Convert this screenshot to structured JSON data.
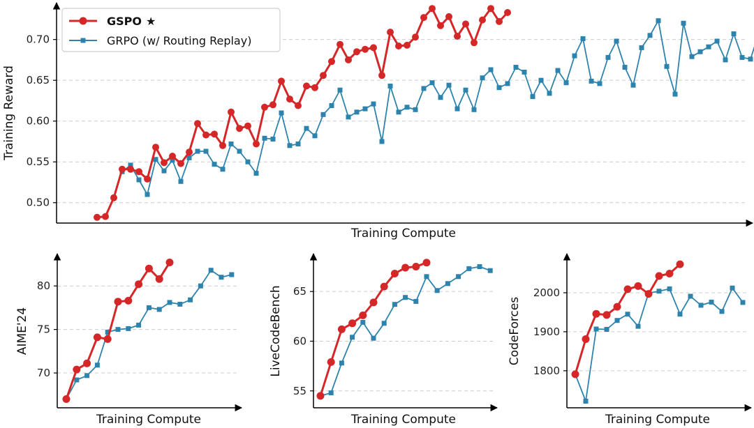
{
  "colors": {
    "gspo": "#d62728",
    "grpo": "#2e83ad",
    "grid": "#cccccc",
    "axis": "#000000"
  },
  "legend": {
    "gspo_label": "GSPO",
    "gspo_star": "★",
    "grpo_label": "GRPO (w/ Routing Replay)"
  },
  "chart_data": [
    {
      "type": "line",
      "xlabel": "Training Compute",
      "ylabel": "Training Reward",
      "ylim": [
        0.475,
        0.745
      ],
      "yticks": [
        0.5,
        0.55,
        0.6,
        0.65,
        0.7
      ],
      "ytick_labels": [
        "0.50",
        "0.55",
        "0.60",
        "0.65",
        "0.70"
      ],
      "grid": true,
      "legend_position": "top-left",
      "series": [
        {
          "name": "GSPO ★",
          "key": "gspo",
          "x_start": 1,
          "values": [
            0.482,
            0.483,
            0.506,
            0.541,
            0.541,
            0.538,
            0.529,
            0.568,
            0.549,
            0.557,
            0.548,
            0.562,
            0.597,
            0.583,
            0.584,
            0.57,
            0.611,
            0.591,
            0.594,
            0.572,
            0.617,
            0.62,
            0.649,
            0.627,
            0.619,
            0.643,
            0.641,
            0.656,
            0.673,
            0.694,
            0.675,
            0.685,
            0.688,
            0.69,
            0.656,
            0.709,
            0.692,
            0.693,
            0.703,
            0.727,
            0.738,
            0.717,
            0.728,
            0.704,
            0.719,
            0.696,
            0.724,
            0.738,
            0.722,
            0.733
          ]
        },
        {
          "name": "GRPO (w/ Routing Replay)",
          "key": "grpo",
          "x_start": 4,
          "values": [
            0.538,
            0.546,
            0.528,
            0.51,
            0.553,
            0.539,
            0.552,
            0.526,
            0.555,
            0.563,
            0.563,
            0.547,
            0.541,
            0.572,
            0.563,
            0.55,
            0.536,
            0.579,
            0.578,
            0.61,
            0.57,
            0.572,
            0.591,
            0.582,
            0.608,
            0.619,
            0.638,
            0.605,
            0.611,
            0.615,
            0.621,
            0.575,
            0.643,
            0.611,
            0.617,
            0.614,
            0.64,
            0.647,
            0.629,
            0.644,
            0.615,
            0.638,
            0.614,
            0.653,
            0.663,
            0.641,
            0.646,
            0.666,
            0.66,
            0.63,
            0.65,
            0.634,
            0.662,
            0.647,
            0.68,
            0.701,
            0.649,
            0.646,
            0.678,
            0.698,
            0.666,
            0.644,
            0.69,
            0.705,
            0.723,
            0.667,
            0.633,
            0.72,
            0.679,
            0.685,
            0.691,
            0.698,
            0.675,
            0.707,
            0.678,
            0.676,
            0.708
          ]
        }
      ]
    },
    {
      "type": "line",
      "xlabel": "Training Compute",
      "ylabel": "AIME'24",
      "ylim": [
        66,
        83.7
      ],
      "yticks": [
        70,
        75,
        80
      ],
      "ytick_labels": [
        "70",
        "75",
        "80"
      ],
      "grid": true,
      "series": [
        {
          "key": "gspo",
          "x_start": 0,
          "values": [
            67.0,
            70.4,
            71.1,
            74.1,
            73.9,
            78.2,
            78.3,
            80.2,
            82.0,
            80.8,
            82.7
          ]
        },
        {
          "key": "grpo",
          "x_start": 0,
          "values": [
            67.0,
            69.2,
            69.7,
            70.9,
            74.7,
            75.0,
            75.1,
            75.5,
            77.5,
            77.3,
            78.1,
            77.9,
            78.4,
            80.0,
            81.8,
            81.0,
            81.3
          ]
        }
      ]
    },
    {
      "type": "line",
      "xlabel": "Training Compute",
      "ylabel": "LiveCodeBench",
      "ylim": [
        53.3,
        68.8
      ],
      "yticks": [
        55,
        60,
        65
      ],
      "ytick_labels": [
        "55",
        "60",
        "65"
      ],
      "grid": true,
      "series": [
        {
          "key": "gspo",
          "x_start": 0,
          "values": [
            54.5,
            57.9,
            61.2,
            61.8,
            62.6,
            63.9,
            65.5,
            66.8,
            67.4,
            67.5,
            67.9
          ]
        },
        {
          "key": "grpo",
          "x_start": 0,
          "values": [
            54.5,
            54.8,
            57.8,
            60.4,
            61.9,
            60.3,
            61.8,
            63.7,
            64.4,
            64.0,
            66.5,
            65.1,
            65.8,
            66.5,
            67.3,
            67.5,
            67.1
          ]
        }
      ]
    },
    {
      "type": "line",
      "xlabel": "Training Compute",
      "ylabel": "CodeForces",
      "ylim": [
        1705,
        2100
      ],
      "yticks": [
        1800,
        1900,
        2000
      ],
      "ytick_labels": [
        "1800",
        "1900",
        "2000"
      ],
      "grid": true,
      "series": [
        {
          "key": "gspo",
          "x_start": 0,
          "values": [
            1791,
            1881,
            1946,
            1943,
            1964,
            2009,
            2017,
            1997,
            2043,
            2049,
            2073
          ]
        },
        {
          "key": "grpo",
          "x_start": 0,
          "values": [
            1791,
            1722,
            1907,
            1906,
            1929,
            1945,
            1914,
            1999,
            2004,
            2010,
            1945,
            1991,
            1968,
            1976,
            1952,
            2012,
            1975
          ]
        }
      ]
    }
  ]
}
